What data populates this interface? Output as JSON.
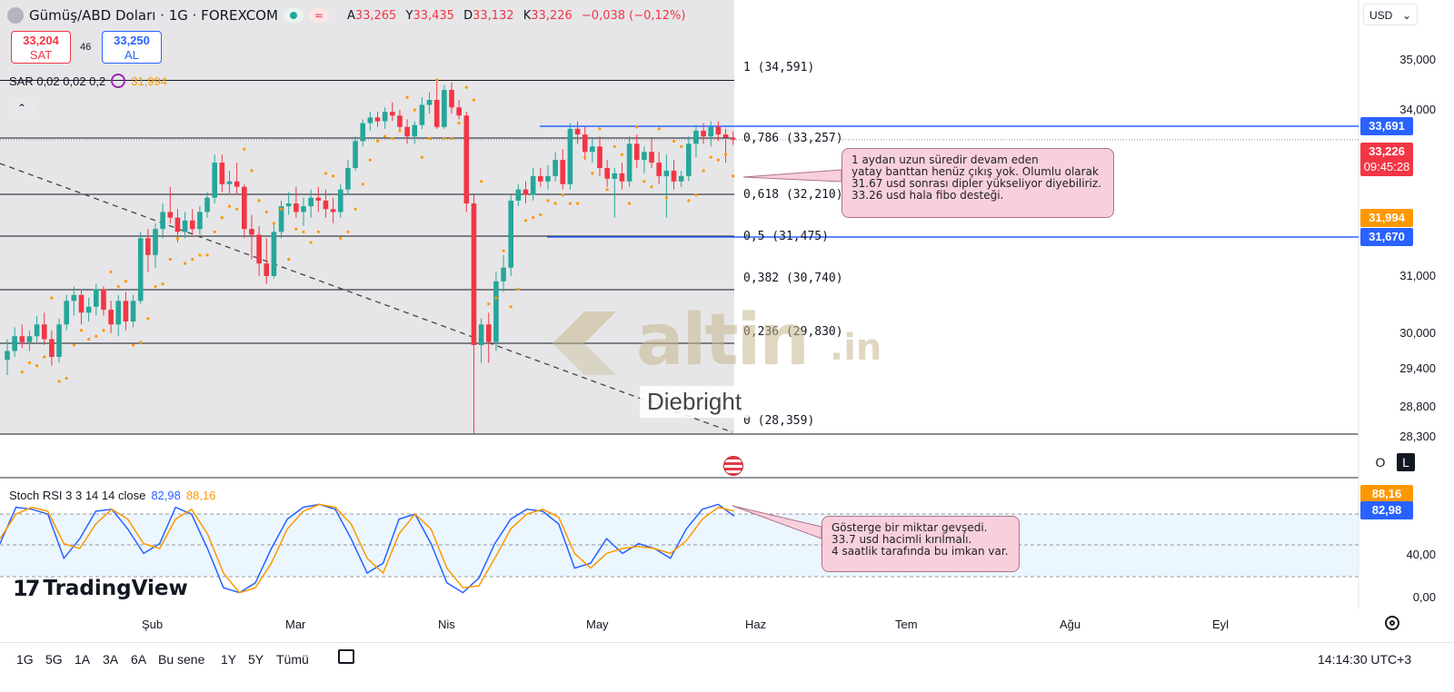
{
  "header": {
    "symbol_title": "Gümüş/ABD Doları · 1G · FOREXCOM",
    "ohlc": [
      {
        "label": "A",
        "value": "33,265"
      },
      {
        "label": "Y",
        "value": "33,435"
      },
      {
        "label": "D",
        "value": "33,132"
      },
      {
        "label": "K",
        "value": "33,226"
      }
    ],
    "change": "−0,038 (−0,12%)"
  },
  "trade": {
    "sell_price": "33,204",
    "sell_label": "SAT",
    "spread": "46",
    "buy_price": "33,250",
    "buy_label": "AL"
  },
  "sar_indicator": {
    "label": "SAR 0,02 0,02 0,2",
    "value": "31,994"
  },
  "rsi_indicator": {
    "label": "Stoch RSI 3 3 14 14 close",
    "k_value": "82,98",
    "d_value": "88,16"
  },
  "currency": "USD",
  "fib_levels": [
    {
      "label": "1 (34,591)",
      "price": 34591
    },
    {
      "label": "0,786 (33,257)",
      "price": 33257
    },
    {
      "label": "0,618 (32,210)",
      "price": 32210
    },
    {
      "label": "0,5 (31,475)",
      "price": 31475
    },
    {
      "label": "0,382 (30,740)",
      "price": 30740
    },
    {
      "label": "0,236 (29,830)",
      "price": 29830
    },
    {
      "label": "0 (28,359)",
      "price": 28359
    }
  ],
  "price_axis": [
    "35,000",
    "34,000",
    "31,000",
    "30,000",
    "29,400",
    "28,800",
    "28,300"
  ],
  "price_tags": {
    "upper_band": "33,691",
    "last": "33,226",
    "countdown": "09:45:28",
    "sar": "31,994",
    "lower_band": "31,670"
  },
  "rsi_axis": [
    "40,00",
    "0,00"
  ],
  "rsi_tags": {
    "d": "88,16",
    "k": "82,98"
  },
  "notes": {
    "price": "1 aydan uzun süredir devam eden\nyatay banttan henüz çıkış yok. Olumlu olarak\n31.67 usd sonrası dipler yükseliyor diyebiliriz.\n33.26 usd hala fibo desteği.",
    "rsi": "Gösterge bir miktar gevşedi.\n33.7 usd hacimli kırılmalı.\n4 saatlik tarafında bu imkan var."
  },
  "watermark": {
    "brand": "altin",
    "suffix": ".in",
    "author": "Diebright"
  },
  "tv_brand": "TradingView",
  "months": [
    "Şub",
    "Mar",
    "Nis",
    "May",
    "Haz",
    "Tem",
    "Ağu",
    "Eyl"
  ],
  "scale_buttons": {
    "o": "O",
    "l": "L"
  },
  "ranges": [
    "1G",
    "5G",
    "1A",
    "3A",
    "6A",
    "Bu sene",
    "1Y",
    "5Y",
    "Tümü"
  ],
  "clock": "14:14:30 UTC+3",
  "colors": {
    "up": "#26a69a",
    "down": "#f23645",
    "sar": "#ff9800",
    "band": "#2962ff",
    "k": "#2962ff",
    "d": "#ff9800"
  },
  "chart_data": {
    "type": "candlestick",
    "title": "Gümüş/ABD Doları · 1G · FOREXCOM",
    "y_axis_ticks": [
      28300,
      28800,
      29400,
      30000,
      31000,
      34000,
      35000
    ],
    "series": [
      {
        "name": "price",
        "points": [
          {
            "t": 1,
            "o": 29550,
            "h": 29900,
            "l": 29300,
            "c": 29700
          },
          {
            "t": 2,
            "o": 29700,
            "h": 30100,
            "l": 29600,
            "c": 29950
          },
          {
            "t": 3,
            "o": 29950,
            "h": 30150,
            "l": 29750,
            "c": 29850
          },
          {
            "t": 4,
            "o": 29850,
            "h": 30050,
            "l": 29700,
            "c": 29950
          },
          {
            "t": 5,
            "o": 29950,
            "h": 30300,
            "l": 29850,
            "c": 30150
          },
          {
            "t": 6,
            "o": 30150,
            "h": 30350,
            "l": 29800,
            "c": 29900
          },
          {
            "t": 7,
            "o": 29900,
            "h": 30050,
            "l": 29450,
            "c": 29600
          },
          {
            "t": 8,
            "o": 29600,
            "h": 30250,
            "l": 29500,
            "c": 30150
          },
          {
            "t": 9,
            "o": 30150,
            "h": 30650,
            "l": 30050,
            "c": 30550
          },
          {
            "t": 10,
            "o": 30550,
            "h": 30800,
            "l": 30300,
            "c": 30650
          },
          {
            "t": 11,
            "o": 30650,
            "h": 30750,
            "l": 30150,
            "c": 30350
          },
          {
            "t": 12,
            "o": 30350,
            "h": 30600,
            "l": 30200,
            "c": 30450
          },
          {
            "t": 13,
            "o": 30450,
            "h": 30850,
            "l": 30300,
            "c": 30750
          },
          {
            "t": 14,
            "o": 30750,
            "h": 30800,
            "l": 30300,
            "c": 30400
          },
          {
            "t": 15,
            "o": 30400,
            "h": 30550,
            "l": 30000,
            "c": 30150
          },
          {
            "t": 16,
            "o": 30150,
            "h": 30650,
            "l": 29950,
            "c": 30550
          },
          {
            "t": 17,
            "o": 30550,
            "h": 30700,
            "l": 30050,
            "c": 30200
          },
          {
            "t": 18,
            "o": 30200,
            "h": 30650,
            "l": 30100,
            "c": 30550
          },
          {
            "t": 19,
            "o": 30550,
            "h": 31550,
            "l": 30500,
            "c": 31450
          },
          {
            "t": 20,
            "o": 31450,
            "h": 31600,
            "l": 31050,
            "c": 31250
          },
          {
            "t": 21,
            "o": 31250,
            "h": 31700,
            "l": 31100,
            "c": 31600
          },
          {
            "t": 22,
            "o": 31600,
            "h": 32050,
            "l": 31450,
            "c": 31900
          },
          {
            "t": 23,
            "o": 31900,
            "h": 32350,
            "l": 31700,
            "c": 31800
          },
          {
            "t": 24,
            "o": 31800,
            "h": 31950,
            "l": 31400,
            "c": 31550
          },
          {
            "t": 25,
            "o": 31550,
            "h": 31900,
            "l": 31450,
            "c": 31750
          },
          {
            "t": 26,
            "o": 31750,
            "h": 31950,
            "l": 31500,
            "c": 31600
          },
          {
            "t": 27,
            "o": 31600,
            "h": 32000,
            "l": 31500,
            "c": 31900
          },
          {
            "t": 28,
            "o": 31900,
            "h": 32250,
            "l": 31800,
            "c": 32150
          },
          {
            "t": 29,
            "o": 32150,
            "h": 32950,
            "l": 32050,
            "c": 32800
          },
          {
            "t": 30,
            "o": 32800,
            "h": 32950,
            "l": 32250,
            "c": 32400
          },
          {
            "t": 31,
            "o": 32400,
            "h": 32650,
            "l": 32200,
            "c": 32450
          },
          {
            "t": 32,
            "o": 32450,
            "h": 32800,
            "l": 32200,
            "c": 32350
          },
          {
            "t": 33,
            "o": 32350,
            "h": 32400,
            "l": 31450,
            "c": 31600
          },
          {
            "t": 34,
            "o": 31600,
            "h": 31850,
            "l": 31200,
            "c": 31500
          },
          {
            "t": 35,
            "o": 31500,
            "h": 31650,
            "l": 31000,
            "c": 31150
          },
          {
            "t": 36,
            "o": 31150,
            "h": 31450,
            "l": 30850,
            "c": 31000
          },
          {
            "t": 37,
            "o": 31000,
            "h": 31700,
            "l": 30950,
            "c": 31550
          },
          {
            "t": 38,
            "o": 31550,
            "h": 32100,
            "l": 31450,
            "c": 32000
          },
          {
            "t": 39,
            "o": 32000,
            "h": 32250,
            "l": 31850,
            "c": 32050
          },
          {
            "t": 40,
            "o": 32050,
            "h": 32350,
            "l": 31800,
            "c": 31900
          },
          {
            "t": 41,
            "o": 31900,
            "h": 32150,
            "l": 31650,
            "c": 32000
          },
          {
            "t": 42,
            "o": 32000,
            "h": 32300,
            "l": 31800,
            "c": 32150
          },
          {
            "t": 43,
            "o": 32150,
            "h": 32350,
            "l": 31900,
            "c": 32100
          },
          {
            "t": 44,
            "o": 32100,
            "h": 32300,
            "l": 31800,
            "c": 31950
          },
          {
            "t": 45,
            "o": 31950,
            "h": 32150,
            "l": 31700,
            "c": 31900
          },
          {
            "t": 46,
            "o": 31900,
            "h": 32400,
            "l": 31800,
            "c": 32300
          },
          {
            "t": 47,
            "o": 32300,
            "h": 32850,
            "l": 32200,
            "c": 32700
          },
          {
            "t": 48,
            "o": 32700,
            "h": 33300,
            "l": 32650,
            "c": 33200
          },
          {
            "t": 49,
            "o": 33200,
            "h": 33750,
            "l": 33100,
            "c": 33650
          },
          {
            "t": 50,
            "o": 33650,
            "h": 33950,
            "l": 33450,
            "c": 33800
          },
          {
            "t": 51,
            "o": 33800,
            "h": 33950,
            "l": 33550,
            "c": 33700
          },
          {
            "t": 52,
            "o": 33700,
            "h": 34050,
            "l": 33500,
            "c": 33950
          },
          {
            "t": 53,
            "o": 33950,
            "h": 34150,
            "l": 33700,
            "c": 33850
          },
          {
            "t": 54,
            "o": 33850,
            "h": 34000,
            "l": 33450,
            "c": 33550
          },
          {
            "t": 55,
            "o": 33550,
            "h": 33750,
            "l": 33150,
            "c": 33300
          },
          {
            "t": 56,
            "o": 33300,
            "h": 33700,
            "l": 33150,
            "c": 33600
          },
          {
            "t": 57,
            "o": 33600,
            "h": 34250,
            "l": 33500,
            "c": 34100
          },
          {
            "t": 58,
            "o": 34100,
            "h": 34350,
            "l": 33900,
            "c": 34200
          },
          {
            "t": 59,
            "o": 34200,
            "h": 34600,
            "l": 33500,
            "c": 33550
          },
          {
            "t": 60,
            "o": 33550,
            "h": 34500,
            "l": 33500,
            "c": 34400
          },
          {
            "t": 61,
            "o": 34400,
            "h": 34550,
            "l": 33900,
            "c": 34050
          },
          {
            "t": 62,
            "o": 34050,
            "h": 34200,
            "l": 33750,
            "c": 33850
          },
          {
            "t": 63,
            "o": 33850,
            "h": 33950,
            "l": 31900,
            "c": 32050
          },
          {
            "t": 64,
            "o": 32050,
            "h": 32200,
            "l": 28359,
            "c": 29800
          },
          {
            "t": 65,
            "o": 29800,
            "h": 30250,
            "l": 29500,
            "c": 30150
          },
          {
            "t": 66,
            "o": 30150,
            "h": 30350,
            "l": 29500,
            "c": 29850
          },
          {
            "t": 67,
            "o": 29850,
            "h": 31050,
            "l": 29700,
            "c": 30900
          },
          {
            "t": 68,
            "o": 30900,
            "h": 31250,
            "l": 30700,
            "c": 31100
          },
          {
            "t": 69,
            "o": 31100,
            "h": 32200,
            "l": 31000,
            "c": 32100
          },
          {
            "t": 70,
            "o": 32100,
            "h": 32400,
            "l": 32000,
            "c": 32300
          },
          {
            "t": 71,
            "o": 32300,
            "h": 32450,
            "l": 32050,
            "c": 32200
          },
          {
            "t": 72,
            "o": 32200,
            "h": 32700,
            "l": 32100,
            "c": 32550
          },
          {
            "t": 73,
            "o": 32550,
            "h": 32700,
            "l": 32350,
            "c": 32450
          },
          {
            "t": 74,
            "o": 32450,
            "h": 32750,
            "l": 32300,
            "c": 32550
          },
          {
            "t": 75,
            "o": 32550,
            "h": 33000,
            "l": 32450,
            "c": 32850
          },
          {
            "t": 76,
            "o": 32850,
            "h": 33050,
            "l": 32300,
            "c": 32400
          },
          {
            "t": 77,
            "o": 32400,
            "h": 33650,
            "l": 32300,
            "c": 33500
          },
          {
            "t": 78,
            "o": 33500,
            "h": 33700,
            "l": 33150,
            "c": 33350
          },
          {
            "t": 79,
            "o": 33350,
            "h": 33550,
            "l": 32850,
            "c": 33000
          },
          {
            "t": 80,
            "o": 33000,
            "h": 33250,
            "l": 32800,
            "c": 33100
          },
          {
            "t": 81,
            "o": 33100,
            "h": 33300,
            "l": 32550,
            "c": 32700
          },
          {
            "t": 82,
            "o": 32700,
            "h": 32850,
            "l": 32350,
            "c": 32500
          },
          {
            "t": 83,
            "o": 32500,
            "h": 32700,
            "l": 31800,
            "c": 32600
          },
          {
            "t": 84,
            "o": 32600,
            "h": 32800,
            "l": 32300,
            "c": 32450
          },
          {
            "t": 85,
            "o": 32450,
            "h": 33300,
            "l": 32350,
            "c": 33150
          },
          {
            "t": 86,
            "o": 33150,
            "h": 33350,
            "l": 32700,
            "c": 32850
          },
          {
            "t": 87,
            "o": 32850,
            "h": 33100,
            "l": 32600,
            "c": 33000
          },
          {
            "t": 88,
            "o": 33000,
            "h": 33250,
            "l": 32700,
            "c": 32800
          },
          {
            "t": 89,
            "o": 32800,
            "h": 33000,
            "l": 32400,
            "c": 32550
          },
          {
            "t": 90,
            "o": 32550,
            "h": 32950,
            "l": 31800,
            "c": 32650
          },
          {
            "t": 91,
            "o": 32650,
            "h": 32850,
            "l": 32300,
            "c": 32450
          },
          {
            "t": 92,
            "o": 32450,
            "h": 32650,
            "l": 32350,
            "c": 32550
          },
          {
            "t": 93,
            "o": 32550,
            "h": 33300,
            "l": 32450,
            "c": 33150
          },
          {
            "t": 94,
            "o": 33150,
            "h": 33600,
            "l": 32900,
            "c": 33450
          },
          {
            "t": 95,
            "o": 33450,
            "h": 33650,
            "l": 33150,
            "c": 33300
          },
          {
            "t": 96,
            "o": 33300,
            "h": 33700,
            "l": 33100,
            "c": 33550
          },
          {
            "t": 97,
            "o": 33550,
            "h": 33700,
            "l": 33200,
            "c": 33350
          },
          {
            "t": 98,
            "o": 33350,
            "h": 33500,
            "l": 32800,
            "c": 33265
          },
          {
            "t": 99,
            "o": 33265,
            "h": 33435,
            "l": 33132,
            "c": 33226
          }
        ]
      }
    ]
  }
}
